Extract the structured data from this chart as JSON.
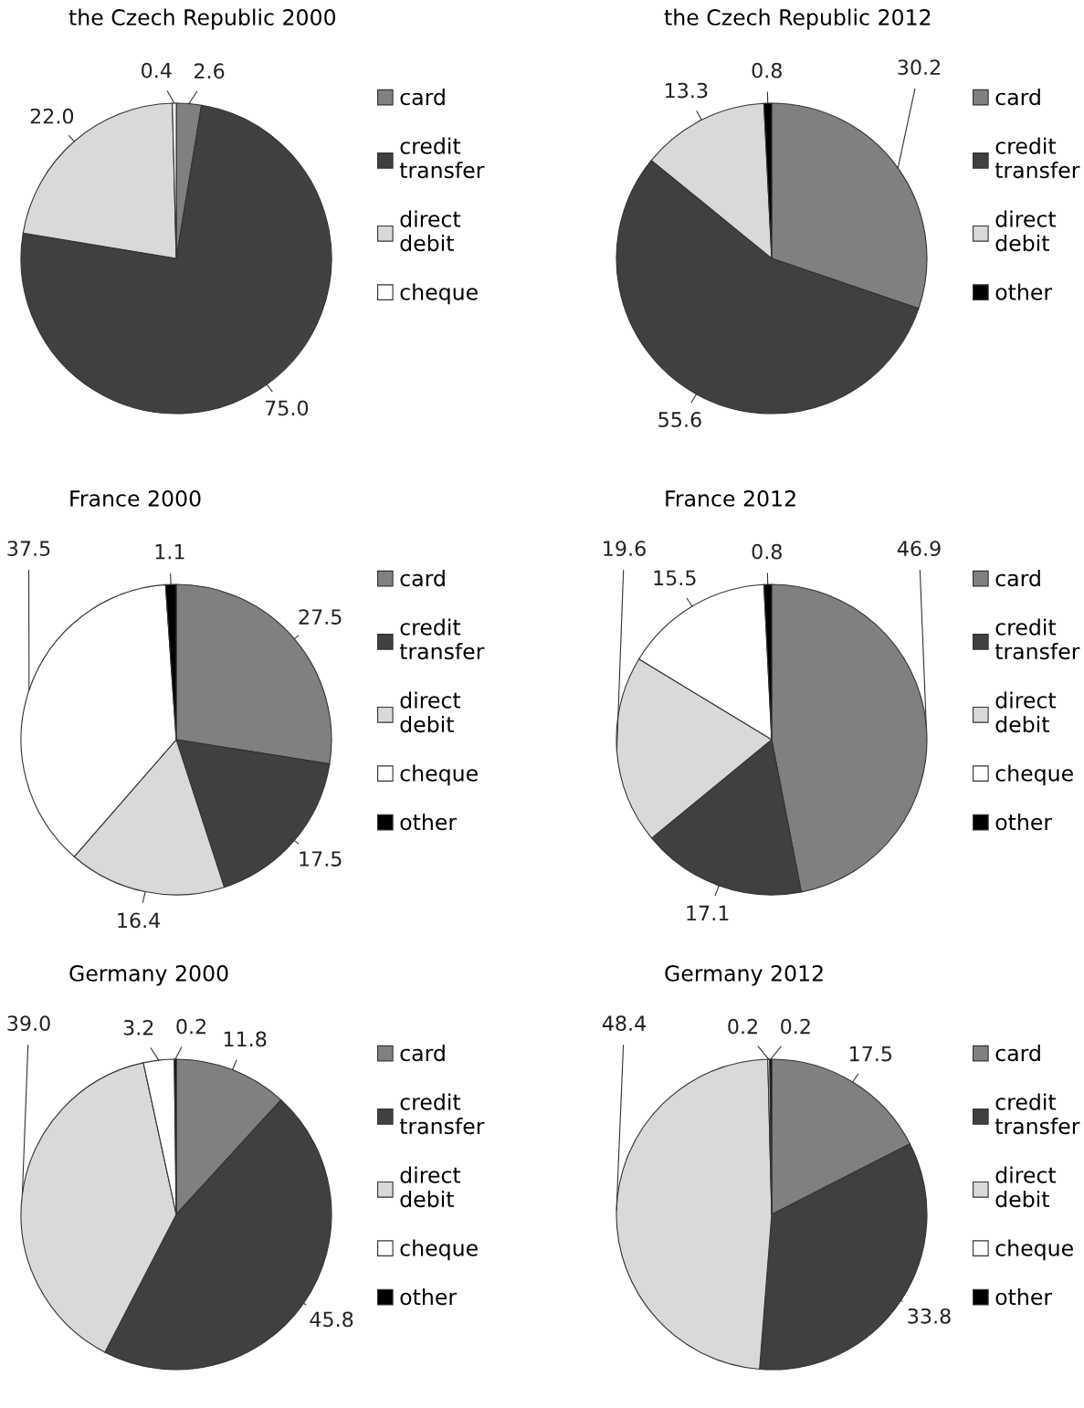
{
  "chart_data": [
    {
      "type": "pie",
      "title": "the Czech Republic 2000",
      "categories": [
        "card",
        "credit transfer",
        "direct debit",
        "cheque"
      ],
      "values": [
        2.6,
        75.0,
        22.0,
        0.4
      ],
      "colors": [
        "#808080",
        "#404040",
        "#d9d9d9",
        "#ffffff"
      ],
      "value_labels": [
        "2.6",
        "75.0",
        "22.0",
        "0.4"
      ],
      "legend": "right"
    },
    {
      "type": "pie",
      "title": "the Czech Republic 2012",
      "categories": [
        "card",
        "credit transfer",
        "direct debit",
        "other"
      ],
      "values": [
        30.2,
        55.6,
        13.3,
        0.8
      ],
      "colors": [
        "#808080",
        "#404040",
        "#d9d9d9",
        "#000000"
      ],
      "value_labels": [
        "30.2",
        "55.6",
        "13.3",
        "0.8"
      ],
      "legend": "right"
    },
    {
      "type": "pie",
      "title": "France 2000",
      "categories": [
        "card",
        "credit transfer",
        "direct debit",
        "cheque",
        "other"
      ],
      "values": [
        27.5,
        17.5,
        16.4,
        37.5,
        1.1
      ],
      "colors": [
        "#808080",
        "#404040",
        "#d9d9d9",
        "#ffffff",
        "#000000"
      ],
      "value_labels": [
        "27.5",
        "17.5",
        "16.4",
        "37.5",
        "1.1"
      ],
      "legend": "right"
    },
    {
      "type": "pie",
      "title": "France 2012",
      "categories": [
        "card",
        "credit transfer",
        "direct debit",
        "cheque",
        "other"
      ],
      "values": [
        46.9,
        17.1,
        19.6,
        15.5,
        0.8
      ],
      "colors": [
        "#808080",
        "#404040",
        "#d9d9d9",
        "#ffffff",
        "#000000"
      ],
      "value_labels": [
        "46.9",
        "17.1",
        "19.6",
        "15.5",
        "0.8"
      ],
      "legend": "right"
    },
    {
      "type": "pie",
      "title": "Germany 2000",
      "categories": [
        "card",
        "credit transfer",
        "direct debit",
        "cheque",
        "other"
      ],
      "values": [
        11.8,
        45.8,
        39.0,
        3.2,
        0.2
      ],
      "colors": [
        "#808080",
        "#404040",
        "#d9d9d9",
        "#ffffff",
        "#000000"
      ],
      "value_labels": [
        "11.8",
        "45.8",
        "39.0",
        "3.2",
        "0.2"
      ],
      "legend": "right"
    },
    {
      "type": "pie",
      "title": "Germany 2012",
      "categories": [
        "card",
        "credit transfer",
        "direct debit",
        "cheque",
        "other"
      ],
      "values": [
        17.5,
        33.8,
        48.4,
        0.2,
        0.2
      ],
      "colors": [
        "#808080",
        "#404040",
        "#d9d9d9",
        "#ffffff",
        "#000000"
      ],
      "value_labels": [
        "17.5",
        "33.8",
        "48.4",
        "0.2",
        "0.2"
      ],
      "legend": "right"
    }
  ]
}
